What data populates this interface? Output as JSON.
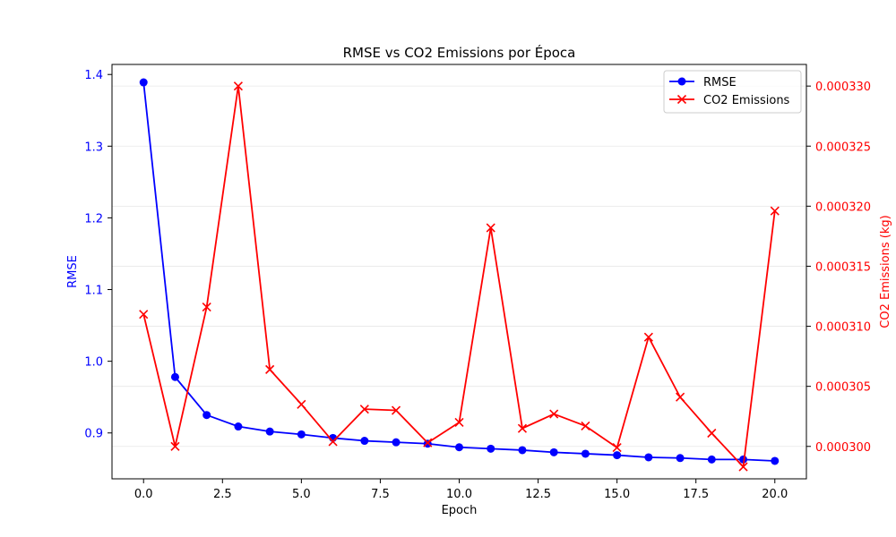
{
  "chart_data": {
    "type": "line",
    "title": "RMSE vs CO2 Emissions por Época",
    "xlabel": "Epoch",
    "ylabel_left": "RMSE",
    "ylabel_right": "CO2 Emissions (kg)",
    "x": [
      0,
      1,
      2,
      3,
      4,
      5,
      6,
      7,
      8,
      9,
      10,
      11,
      12,
      13,
      14,
      15,
      16,
      17,
      18,
      19,
      20
    ],
    "xlim": [
      -1.0,
      21.0
    ],
    "xticks": [
      0.0,
      2.5,
      5.0,
      7.5,
      10.0,
      12.5,
      15.0,
      17.5,
      20.0
    ],
    "xtick_labels": [
      "0.0",
      "2.5",
      "5.0",
      "7.5",
      "10.0",
      "12.5",
      "15.0",
      "17.5",
      "20.0"
    ],
    "ylim_left": [
      0.836,
      1.414
    ],
    "yticks_left": [
      0.9,
      1.0,
      1.1,
      1.2,
      1.3,
      1.4
    ],
    "ytick_labels_left": [
      "0.9",
      "1.0",
      "1.1",
      "1.2",
      "1.3",
      "1.4"
    ],
    "ylim_right": [
      0.0002973,
      0.0003318
    ],
    "yticks_right": [
      0.0003,
      0.000305,
      0.00031,
      0.000315,
      0.00032,
      0.000325,
      0.00033
    ],
    "ytick_labels_right": [
      "0.000300",
      "0.000305",
      "0.000310",
      "0.000315",
      "0.000320",
      "0.000325",
      "0.000330"
    ],
    "grid": true,
    "legend_position": "top-right",
    "series": [
      {
        "name": "RMSE",
        "axis": "left",
        "color": "#0000ff",
        "marker": "circle",
        "values": [
          1.389,
          0.978,
          0.925,
          0.909,
          0.902,
          0.898,
          0.893,
          0.889,
          0.887,
          0.885,
          0.88,
          0.878,
          0.876,
          0.873,
          0.871,
          0.869,
          0.866,
          0.865,
          0.863,
          0.863,
          0.861
        ]
      },
      {
        "name": "CO2 Emissions",
        "axis": "right",
        "color": "#ff0000",
        "marker": "x",
        "values": [
          0.000311,
          0.0003,
          0.0003116,
          0.00033,
          0.0003064,
          0.0003035,
          0.0003004,
          0.0003031,
          0.000303,
          0.0003003,
          0.000302,
          0.0003182,
          0.0003015,
          0.0003027,
          0.0003017,
          0.0002999,
          0.0003091,
          0.0003041,
          0.0003011,
          0.0002983,
          0.0003196
        ]
      }
    ]
  }
}
